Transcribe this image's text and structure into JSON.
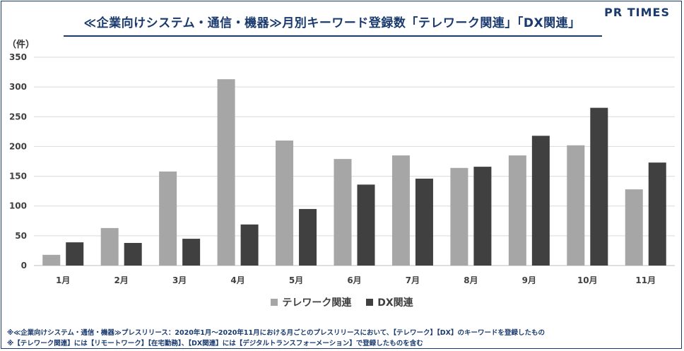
{
  "title": "≪企業向けシステム・通信・機器≫月別キーワード登録数「テレワーク関連」「DX関連」",
  "logo": "PR TIMES",
  "unit": "（件）",
  "notes": [
    "※≪企業向けシステム・通信・機器≫プレスリリース：2020年1月〜2020年11月における月ごとのプレスリリースにおいて、【テレワーク】【DX】のキーワードを登録したもの",
    "※【テレワーク関連】には【リモートワーク】【在宅勤務】、【DX関連】には【デジタルトランスフォーメーション】で登録したものを含む"
  ],
  "chart_data": {
    "type": "bar",
    "categories": [
      "1月",
      "2月",
      "3月",
      "4月",
      "5月",
      "6月",
      "7月",
      "8月",
      "9月",
      "10月",
      "11月"
    ],
    "series": [
      {
        "name": "テレワーク関連",
        "color": "#a6a6a6",
        "values": [
          18,
          63,
          158,
          313,
          210,
          179,
          185,
          164,
          185,
          202,
          128
        ]
      },
      {
        "name": "DX関連",
        "color": "#404040",
        "values": [
          39,
          38,
          45,
          69,
          95,
          136,
          146,
          166,
          218,
          265,
          173
        ]
      }
    ],
    "ylim": [
      0,
      350
    ],
    "yticks": [
      0,
      50,
      100,
      150,
      200,
      250,
      300,
      350
    ],
    "grid": true,
    "legend": "bottom"
  }
}
